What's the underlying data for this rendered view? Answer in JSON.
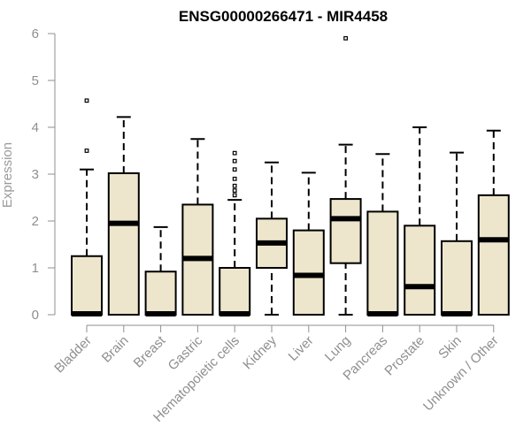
{
  "chart_data": {
    "type": "box",
    "title": "ENSG00000266471 - MIR4458",
    "ylabel": "Expression",
    "xlabel": "",
    "ylim": [
      0,
      6
    ],
    "yticks": [
      "0",
      "1",
      "2",
      "3",
      "4",
      "5",
      "6"
    ],
    "categories": [
      "Bladder",
      "Brain",
      "Breast",
      "Gastric",
      "Hematopoietic cells",
      "Kidney",
      "Liver",
      "Lung",
      "Pancreas",
      "Prostate",
      "Skin",
      "Unknown / Other"
    ],
    "boxes": [
      {
        "category": "Bladder",
        "min": 0,
        "q1": 0,
        "median": 0.02,
        "q3": 1.25,
        "max": 3.1,
        "outliers": [
          3.5,
          4.57
        ]
      },
      {
        "category": "Brain",
        "min": 0,
        "q1": 0,
        "median": 1.95,
        "q3": 3.02,
        "max": 4.22,
        "outliers": []
      },
      {
        "category": "Breast",
        "min": 0,
        "q1": 0,
        "median": 0.02,
        "q3": 0.92,
        "max": 1.87,
        "outliers": []
      },
      {
        "category": "Gastric",
        "min": 0,
        "q1": 0,
        "median": 1.2,
        "q3": 2.35,
        "max": 3.75,
        "outliers": []
      },
      {
        "category": "Hematopoietic cells",
        "min": 0,
        "q1": 0,
        "median": 0.02,
        "q3": 1.0,
        "max": 2.45,
        "outliers": [
          2.55,
          2.65,
          2.75,
          2.9,
          3.1,
          3.28,
          3.45
        ]
      },
      {
        "category": "Kidney",
        "min": 0,
        "q1": 1.0,
        "median": 1.53,
        "q3": 2.05,
        "max": 3.25,
        "outliers": []
      },
      {
        "category": "Liver",
        "min": 0,
        "q1": 0,
        "median": 0.84,
        "q3": 1.8,
        "max": 3.03,
        "outliers": []
      },
      {
        "category": "Lung",
        "min": 0,
        "q1": 1.1,
        "median": 2.05,
        "q3": 2.47,
        "max": 3.63,
        "outliers": [
          5.9
        ]
      },
      {
        "category": "Pancreas",
        "min": 0,
        "q1": 0,
        "median": 0.02,
        "q3": 2.2,
        "max": 3.43,
        "outliers": []
      },
      {
        "category": "Prostate",
        "min": 0,
        "q1": 0,
        "median": 0.6,
        "q3": 1.9,
        "max": 4.0,
        "outliers": []
      },
      {
        "category": "Skin",
        "min": 0,
        "q1": 0,
        "median": 0.02,
        "q3": 1.57,
        "max": 3.46,
        "outliers": []
      },
      {
        "category": "Unknown / Other",
        "min": 0,
        "q1": 0,
        "median": 1.6,
        "q3": 2.55,
        "max": 3.93,
        "outliers": []
      }
    ],
    "box_fill": "#ede6cc",
    "box_stroke": "#000000",
    "axis_color": "#8f8f8f",
    "grid": false,
    "legend": "none"
  }
}
